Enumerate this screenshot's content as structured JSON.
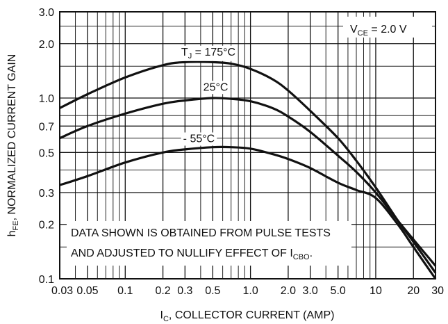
{
  "chart_data": {
    "type": "line",
    "x_scale": "log",
    "y_scale": "log",
    "xlim": [
      0.03,
      30
    ],
    "ylim": [
      0.1,
      3.0
    ],
    "grid": true,
    "xlabel": {
      "main": "I",
      "sub": "C",
      "rest": ", COLLECTOR CURRENT (AMP)"
    },
    "ylabel": {
      "main": "h",
      "sub": "FE",
      "rest": ", NORMALIZED CURRENT GAIN"
    },
    "x_ticks": [
      {
        "value": 0.03,
        "label": "0.03"
      },
      {
        "value": 0.05,
        "label": "0.05"
      },
      {
        "value": 0.1,
        "label": "0.1"
      },
      {
        "value": 0.2,
        "label": "0.2"
      },
      {
        "value": 0.3,
        "label": "0.3"
      },
      {
        "value": 0.5,
        "label": "0.5"
      },
      {
        "value": 1.0,
        "label": "1.0"
      },
      {
        "value": 2.0,
        "label": "2.0"
      },
      {
        "value": 3.0,
        "label": "3.0"
      },
      {
        "value": 5.0,
        "label": "5.0"
      },
      {
        "value": 10,
        "label": "10"
      },
      {
        "value": 20,
        "label": "20"
      },
      {
        "value": 30,
        "label": "30"
      }
    ],
    "y_ticks": [
      {
        "value": 0.1,
        "label": "0.1"
      },
      {
        "value": 0.2,
        "label": "0.2"
      },
      {
        "value": 0.3,
        "label": "0.3"
      },
      {
        "value": 0.5,
        "label": "0.5"
      },
      {
        "value": 0.7,
        "label": "0.7"
      },
      {
        "value": 1.0,
        "label": "1.0"
      },
      {
        "value": 2.0,
        "label": "2.0"
      },
      {
        "value": 3.0,
        "label": "3.0"
      }
    ],
    "x_minor_grid": [
      0.04,
      0.06,
      0.07,
      0.08,
      0.09,
      0.4,
      0.6,
      0.7,
      0.8,
      0.9,
      4,
      6,
      7,
      8,
      9
    ],
    "y_minor_grid": [
      0.15,
      0.4,
      0.6,
      0.8,
      1.5,
      2.5
    ],
    "series": [
      {
        "name_main": "T",
        "name_sub": "J",
        "name_rest": " = 175°C",
        "label_at": [
          0.28,
          1.72
        ],
        "x": [
          0.03,
          0.05,
          0.1,
          0.2,
          0.3,
          0.5,
          0.7,
          1.0,
          1.5,
          2.0,
          3.0,
          5.0,
          7.0,
          10,
          15,
          20,
          30
        ],
        "y": [
          0.88,
          1.05,
          1.3,
          1.52,
          1.58,
          1.58,
          1.55,
          1.45,
          1.27,
          1.1,
          0.85,
          0.6,
          0.45,
          0.32,
          0.21,
          0.16,
          0.108
        ]
      },
      {
        "name_main": "25°C",
        "name_sub": "",
        "name_rest": "",
        "label_at": [
          0.42,
          1.1
        ],
        "x": [
          0.03,
          0.05,
          0.1,
          0.2,
          0.3,
          0.5,
          0.7,
          1.0,
          1.5,
          2.0,
          3.0,
          5.0,
          7.0,
          10,
          15,
          20,
          30
        ],
        "y": [
          0.6,
          0.7,
          0.82,
          0.93,
          0.97,
          1.0,
          0.99,
          0.96,
          0.88,
          0.79,
          0.65,
          0.48,
          0.39,
          0.3,
          0.21,
          0.165,
          0.118
        ]
      },
      {
        "name_main": "- 55°C",
        "name_sub": "",
        "name_rest": "",
        "label_at": [
          0.29,
          0.57
        ],
        "x": [
          0.03,
          0.05,
          0.1,
          0.2,
          0.3,
          0.5,
          0.7,
          1.0,
          1.5,
          2.0,
          3.0,
          5.0,
          7.0,
          10,
          15,
          20,
          30
        ],
        "y": [
          0.33,
          0.37,
          0.44,
          0.5,
          0.52,
          0.535,
          0.535,
          0.525,
          0.49,
          0.46,
          0.41,
          0.34,
          0.31,
          0.28,
          0.2,
          0.15,
          0.1
        ]
      }
    ],
    "annotations": {
      "vce": {
        "main": "V",
        "sub": "CE",
        "rest": " = 2.0 V"
      },
      "note_line1": "DATA SHOWN IS OBTAINED FROM PULSE TESTS",
      "note_line2": {
        "main": "AND ADJUSTED TO NULLIFY EFFECT OF I",
        "sub": "CBO",
        "rest": "."
      }
    }
  }
}
